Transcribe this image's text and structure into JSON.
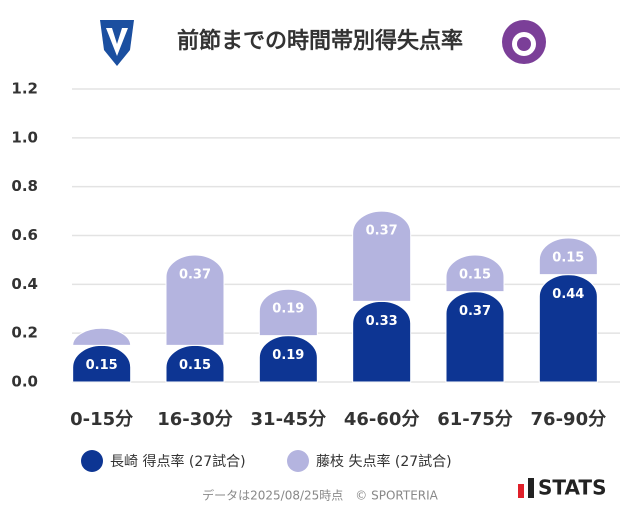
{
  "chart_data": {
    "type": "stacked-bar",
    "title": "前節までの時間帯別得失点率",
    "categories": [
      "0-15分",
      "16-30分",
      "31-45分",
      "46-60分",
      "61-75分",
      "76-90分"
    ],
    "series": [
      {
        "name": "長崎 得点率 (27試合)",
        "color": "#0d3593",
        "values": [
          0.15,
          0.15,
          0.19,
          0.33,
          0.37,
          0.44
        ]
      },
      {
        "name": "藤枝 失点率 (27試合)",
        "color": "#b4b4df",
        "values": [
          0.07,
          0.37,
          0.19,
          0.37,
          0.15,
          0.15
        ]
      }
    ],
    "ylim": [
      0,
      1.2
    ],
    "yticks": [
      {
        "value": 0,
        "label": "0.0"
      },
      0.2,
      0.4,
      0.6,
      0.8,
      {
        "value": 1,
        "label": "1.0"
      },
      1.2
    ],
    "grid": true
  },
  "footer": "データは2025/08/25時点　© SPORTERIA",
  "brand": "STATS"
}
